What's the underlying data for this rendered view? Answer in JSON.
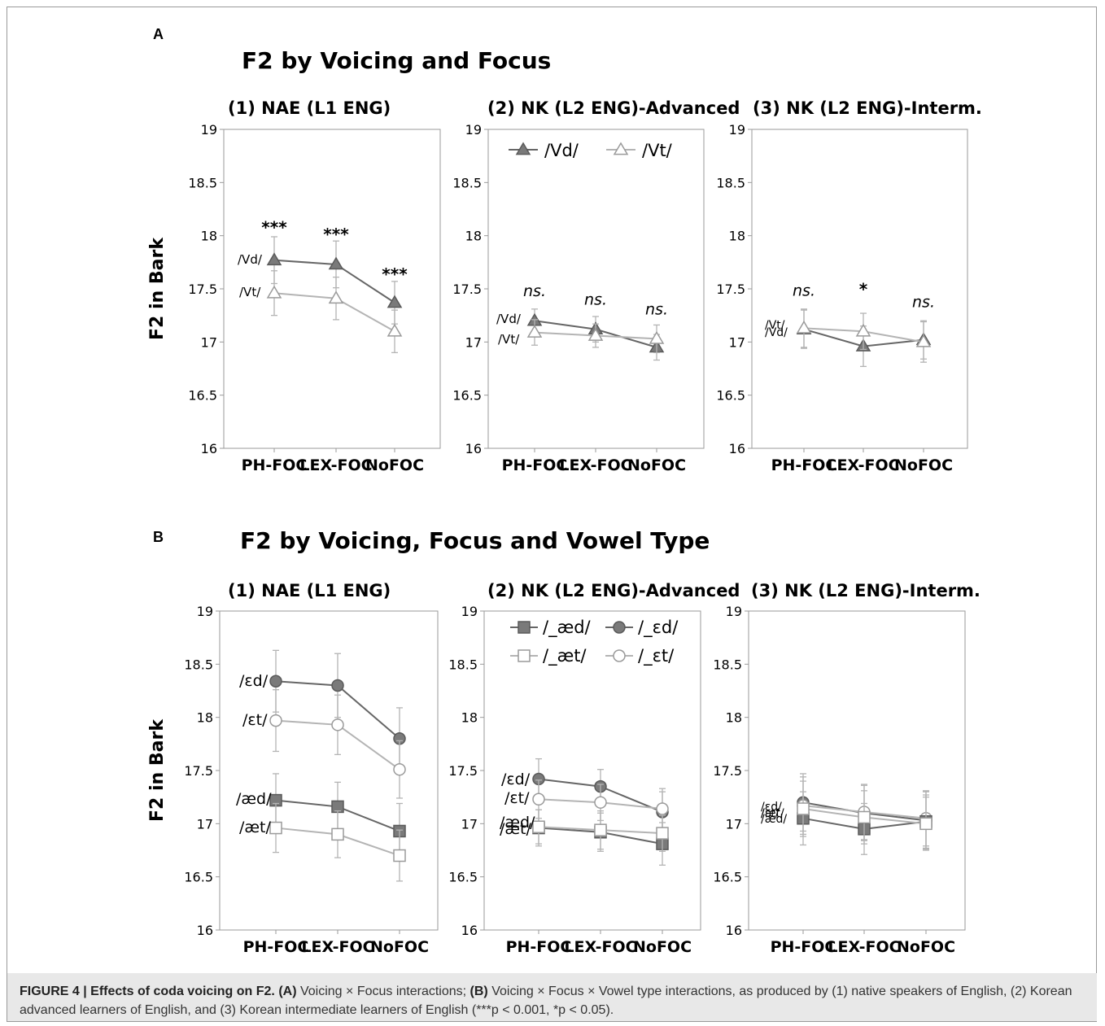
{
  "panels": {
    "A": {
      "letter": "A",
      "title": "F2 by Voicing and Focus"
    },
    "B": {
      "letter": "B",
      "title": "F2 by Voicing, Focus and Vowel Type"
    }
  },
  "colors": {
    "dark": "#666666",
    "light": "#9a9a9a",
    "lighter": "#b4b4b4",
    "frame": "#9a9a9a"
  },
  "chart_data": [
    {
      "type": "line",
      "panel": "A",
      "title": "(1) NAE (L1 ENG)",
      "ylabel": "F2 in Bark",
      "categories": [
        "PH-FOC",
        "LEX-FOC",
        "NoFOC"
      ],
      "ylim": [
        16,
        19
      ],
      "yticks": [
        16,
        16.5,
        17,
        17.5,
        18,
        18.5,
        19
      ],
      "series": [
        {
          "name": "/Vd/",
          "marker": "triangle-filled",
          "values": [
            17.77,
            17.73,
            17.37
          ],
          "error": [
            0.22,
            0.22,
            0.2
          ]
        },
        {
          "name": "/Vt/",
          "marker": "triangle-open",
          "values": [
            17.46,
            17.41,
            17.1
          ],
          "error": [
            0.21,
            0.2,
            0.2
          ]
        }
      ],
      "annotations": [
        "***",
        "***",
        "***"
      ],
      "line_labels": [
        "/Vd/",
        "/Vt/"
      ]
    },
    {
      "type": "line",
      "panel": "A",
      "title": "(2) NK (L2 ENG)-Advanced",
      "categories": [
        "PH-FOC",
        "LEX-FOC",
        "NoFOC"
      ],
      "ylim": [
        16,
        19
      ],
      "yticks": [
        16,
        16.5,
        17,
        17.5,
        18,
        18.5,
        19
      ],
      "legend": [
        "/Vd/",
        "/Vt/"
      ],
      "series": [
        {
          "name": "/Vd/",
          "marker": "triangle-filled",
          "values": [
            17.2,
            17.12,
            16.95
          ],
          "error": [
            0.11,
            0.12,
            0.12
          ]
        },
        {
          "name": "/Vt/",
          "marker": "triangle-open",
          "values": [
            17.09,
            17.06,
            17.03
          ],
          "error": [
            0.12,
            0.11,
            0.13
          ]
        }
      ],
      "annotations": [
        "ns.",
        "ns.",
        "ns."
      ],
      "line_labels": [
        "/Vd/",
        "/Vt/"
      ]
    },
    {
      "type": "line",
      "panel": "A",
      "title": "(3) NK (L2 ENG)-Interm.",
      "categories": [
        "PH-FOC",
        "LEX-FOC",
        "NoFOC"
      ],
      "ylim": [
        16,
        19
      ],
      "yticks": [
        16,
        16.5,
        17,
        17.5,
        18,
        18.5,
        19
      ],
      "series": [
        {
          "name": "/Vd/",
          "marker": "triangle-filled",
          "values": [
            17.12,
            16.96,
            17.02
          ],
          "error": [
            0.18,
            0.19,
            0.18
          ]
        },
        {
          "name": "/Vt/",
          "marker": "triangle-open",
          "values": [
            17.13,
            17.1,
            17.0
          ],
          "error": [
            0.18,
            0.17,
            0.19
          ]
        }
      ],
      "annotations": [
        "ns.",
        "*",
        "ns."
      ],
      "line_labels": [
        "/Vt/",
        "/Vd/"
      ]
    },
    {
      "type": "line",
      "panel": "B",
      "title": "(1) NAE (L1 ENG)",
      "ylabel": "F2 in Bark",
      "categories": [
        "PH-FOC",
        "LEX-FOC",
        "NoFOC"
      ],
      "ylim": [
        16,
        19
      ],
      "yticks": [
        16,
        16.5,
        17,
        17.5,
        18,
        18.5,
        19
      ],
      "series": [
        {
          "name": "/ɛd/",
          "marker": "circle-filled",
          "values": [
            18.34,
            18.3,
            17.8
          ],
          "error": [
            0.29,
            0.3,
            0.29
          ]
        },
        {
          "name": "/ɛt/",
          "marker": "circle-open",
          "values": [
            17.97,
            17.93,
            17.51
          ],
          "error": [
            0.29,
            0.28,
            0.27
          ]
        },
        {
          "name": "/æd/",
          "marker": "square-filled",
          "values": [
            17.22,
            17.16,
            16.93
          ],
          "error": [
            0.25,
            0.23,
            0.26
          ]
        },
        {
          "name": "/æt/",
          "marker": "square-open",
          "values": [
            16.96,
            16.9,
            16.7
          ],
          "error": [
            0.23,
            0.22,
            0.24
          ]
        }
      ],
      "line_labels": [
        "/ɛd/",
        "/ɛt/",
        "/æd/",
        "/æt/"
      ]
    },
    {
      "type": "line",
      "panel": "B",
      "title": "(2) NK (L2 ENG)-Advanced",
      "categories": [
        "PH-FOC",
        "LEX-FOC",
        "NoFOC"
      ],
      "ylim": [
        16,
        19
      ],
      "yticks": [
        16,
        16.5,
        17,
        17.5,
        18,
        18.5,
        19
      ],
      "legend": [
        "/_æd/",
        "/_ɛd/",
        "/_æt/",
        "/_ɛt/"
      ],
      "series": [
        {
          "name": "/_ɛd/",
          "marker": "circle-filled",
          "values": [
            17.42,
            17.35,
            17.11
          ],
          "error": [
            0.19,
            0.16,
            0.19
          ]
        },
        {
          "name": "/_ɛt/",
          "marker": "circle-open",
          "values": [
            17.23,
            17.2,
            17.14
          ],
          "error": [
            0.18,
            0.17,
            0.19
          ]
        },
        {
          "name": "/_æd/",
          "marker": "square-filled",
          "values": [
            16.96,
            16.92,
            16.81
          ],
          "error": [
            0.17,
            0.18,
            0.2
          ]
        },
        {
          "name": "/_æt/",
          "marker": "square-open",
          "values": [
            16.97,
            16.94,
            16.91
          ],
          "error": [
            0.16,
            0.18,
            0.17
          ]
        }
      ],
      "line_labels": [
        "/ɛd/",
        "/ɛt/",
        "/æd/",
        "/æt/"
      ]
    },
    {
      "type": "line",
      "panel": "B",
      "title": "(3) NK (L2 ENG)-Interm.",
      "categories": [
        "PH-FOC",
        "LEX-FOC",
        "NoFOC"
      ],
      "ylim": [
        16,
        19
      ],
      "yticks": [
        16,
        16.5,
        17,
        17.5,
        18,
        18.5,
        19
      ],
      "series": [
        {
          "name": "/ɛd/",
          "marker": "circle-filled",
          "values": [
            17.2,
            17.1,
            17.03
          ],
          "error": [
            0.27,
            0.26,
            0.27
          ]
        },
        {
          "name": "/ɛt/",
          "marker": "circle-open",
          "values": [
            17.17,
            17.11,
            17.05
          ],
          "error": [
            0.27,
            0.26,
            0.26
          ]
        },
        {
          "name": "/æd/",
          "marker": "square-filled",
          "values": [
            17.05,
            16.95,
            17.02
          ],
          "error": [
            0.25,
            0.24,
            0.25
          ]
        },
        {
          "name": "/æt/",
          "marker": "square-open",
          "values": [
            17.14,
            17.06,
            17.0
          ],
          "error": [
            0.26,
            0.25,
            0.25
          ]
        }
      ],
      "line_labels": [
        "/ɛd/",
        "/ɛt/",
        "/æd/",
        "/æt/"
      ]
    }
  ],
  "caption": {
    "label": "FIGURE 4 | Effects of coda voicing on F2.",
    "a_tag": "(A)",
    "a_text": "Voicing × Focus interactions;",
    "b_tag": "(B)",
    "b_text": "Voicing × Focus × Vowel type interactions, as produced by (1) native speakers of English, (2) Korean advanced learners of English, and (3) Korean intermediate learners of English (***p < 0.001, *p < 0.05)."
  }
}
